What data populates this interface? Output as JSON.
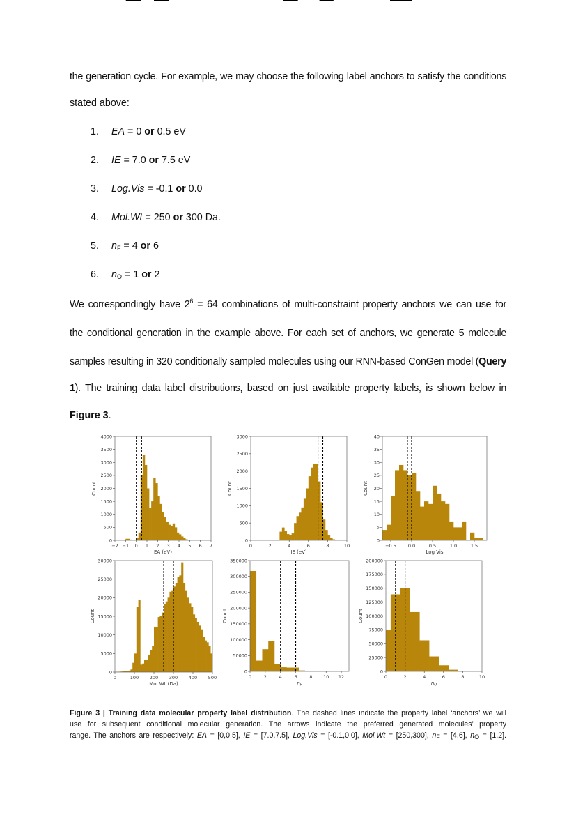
{
  "body": {
    "p1_line1": "the generation cycle. For example, we may choose the following label anchors to satisfy the conditions",
    "p1_line2": "stated above:",
    "list": [
      {
        "num": "1.",
        "var": "EA",
        "eq": " = 0 ",
        "or": "or",
        "rest": " 0.5 eV"
      },
      {
        "num": "2.",
        "var": "IE",
        "eq": " = 7.0 ",
        "or": "or",
        "rest": " 7.5 eV"
      },
      {
        "num": "3.",
        "var": "Log.Vis",
        "eq": " = -0.1 ",
        "or": "or",
        "rest": " 0.0"
      },
      {
        "num": "4.",
        "var": "Mol.Wt",
        "eq": " = 250 ",
        "or": "or",
        "rest": " 300 Da."
      },
      {
        "num": "5.",
        "var": "n",
        "sub": "F",
        "eq": " = 4 ",
        "or": "or",
        "rest": " 6"
      },
      {
        "num": "6.",
        "var": "n",
        "sub": "O",
        "eq": " = 1 ",
        "or": "or",
        "rest": " 2"
      }
    ],
    "p2_line1_a": "We correspondingly have 2",
    "p2_line1_sup": "6",
    "p2_line1_b": " = 64 combinations of multi-constraint property anchors we can use for",
    "p2_line2": "the conditional generation in the example above. For each set of anchors, we generate 5 molecule",
    "p2_line3_a": "samples resulting in 320 conditionally sampled molecules using our RNN-based ConGen model (",
    "p2_line3_bold": "Query",
    "p2_line4_bold": "1",
    "p2_line4_b": "). The training data label distributions, based on just available property labels, is shown below in",
    "p2_line5_bold": "Figure 3",
    "p2_line5_b": "."
  },
  "caption": {
    "label": "Figure 3 | Training data molecular property label distribution",
    "line1_rest": ". The dashed lines indicate the property label ‘anchors’ we will",
    "line2": "use for subsequent conditional molecular generation. The arrows indicate the preferred generated molecules’ property",
    "line3_a": "range. The anchors are respectively: ",
    "ea": "EA",
    "ea_v": " = [0,0.5], ",
    "ie": "IE",
    "ie_v": " = [7.0,7.5], ",
    "lv": "Log.Vis",
    "lv_v": " = [-0.1,0.0], ",
    "mw": "Mol.Wt",
    "mw_v": " = [250,300], ",
    "nf": "n",
    "nf_sub": "F",
    "nf_v": " = [4,6], ",
    "no": "n",
    "no_sub": "O",
    "no_v": " = [1,2]."
  },
  "colors": {
    "bar": "#B8860B",
    "anchor": "#000000",
    "arrow": "#000000"
  },
  "chart_data": [
    {
      "type": "bar",
      "subtype": "histogram",
      "xlabel": "EA (eV)",
      "ylabel": "Count",
      "xlim": [
        -2,
        7
      ],
      "ylim": [
        0,
        4000
      ],
      "xticks": [
        "−2",
        "−1",
        "0",
        "1",
        "2",
        "3",
        "4",
        "5",
        "6",
        "7"
      ],
      "xtick_values": [
        -2,
        -1,
        0,
        1,
        2,
        3,
        4,
        5,
        6,
        7
      ],
      "yticks": [
        "0",
        "500",
        "1000",
        "1500",
        "2000",
        "2500",
        "3000",
        "3500",
        "4000"
      ],
      "ytick_values": [
        0,
        500,
        1000,
        1500,
        2000,
        2500,
        3000,
        3500,
        4000
      ],
      "bin_start": -1.0,
      "bin_width": 0.2,
      "counts": [
        60,
        60,
        30,
        10,
        10,
        100,
        300,
        2500,
        3300,
        2900,
        2000,
        1250,
        1500,
        2400,
        2200,
        1700,
        1400,
        1100,
        900,
        700,
        600,
        550,
        650,
        500,
        300,
        230,
        150,
        80,
        40,
        20,
        10,
        5
      ],
      "anchors": [
        0,
        0.5
      ],
      "arrow_direction": "left"
    },
    {
      "type": "bar",
      "subtype": "histogram",
      "xlabel": "IE (eV)",
      "ylabel": "Count",
      "xlim": [
        0,
        10
      ],
      "ylim": [
        0,
        3000
      ],
      "xticks": [
        "0",
        "2",
        "4",
        "6",
        "8",
        "10"
      ],
      "xtick_values": [
        0,
        2,
        4,
        6,
        8,
        10
      ],
      "yticks": [
        "0",
        "500",
        "1000",
        "1500",
        "2000",
        "2500",
        "3000"
      ],
      "ytick_values": [
        0,
        500,
        1000,
        1500,
        2000,
        2500,
        3000
      ],
      "bin_start": 0,
      "bin_width": 0.25,
      "counts": [
        0,
        2,
        3,
        5,
        5,
        8,
        10,
        12,
        15,
        20,
        20,
        10,
        250,
        370,
        280,
        180,
        150,
        200,
        500,
        700,
        800,
        950,
        1200,
        1500,
        1850,
        2100,
        2200,
        2200,
        1700,
        1100,
        600,
        300,
        150,
        70,
        30,
        10
      ],
      "anchors": [
        7.0,
        7.5
      ],
      "arrow_direction": "right"
    },
    {
      "type": "bar",
      "subtype": "histogram",
      "xlabel": "Log Vis",
      "ylabel": "Count",
      "xlim": [
        -0.7,
        1.8
      ],
      "ylim": [
        0,
        40
      ],
      "xticks": [
        "−0.5",
        "0.0",
        "0.5",
        "1.0",
        "1.5"
      ],
      "xtick_values": [
        -0.5,
        0,
        0.5,
        1.0,
        1.5
      ],
      "yticks": [
        "0",
        "5",
        "10",
        "15",
        "20",
        "25",
        "30",
        "35",
        "40"
      ],
      "ytick_values": [
        0,
        5,
        10,
        15,
        20,
        25,
        30,
        35,
        40
      ],
      "bin_start": -0.7,
      "bin_width": 0.1,
      "counts": [
        4,
        6,
        17,
        27,
        29,
        27,
        25,
        26,
        19,
        13,
        15,
        14,
        21,
        18,
        15,
        14,
        7,
        5,
        5,
        7,
        0,
        3,
        1,
        1
      ],
      "anchors": [
        -0.1,
        0.0
      ],
      "arrow_direction": "left"
    },
    {
      "type": "bar",
      "subtype": "histogram",
      "xlabel": "Mol.Wt (Da)",
      "ylabel": "Count",
      "xlim": [
        0,
        500
      ],
      "ylim": [
        0,
        30000
      ],
      "xticks": [
        "0",
        "100",
        "200",
        "300",
        "400",
        "500"
      ],
      "xtick_values": [
        0,
        100,
        200,
        300,
        400,
        500
      ],
      "yticks": [
        "0",
        "5000",
        "10000",
        "15000",
        "20000",
        "25000",
        "30000"
      ],
      "ytick_values": [
        0,
        5000,
        10000,
        15000,
        20000,
        25000,
        30000
      ],
      "bin_start": 0,
      "bin_width": 10,
      "counts": [
        50,
        80,
        100,
        150,
        200,
        250,
        300,
        400,
        700,
        2500,
        5000,
        17500,
        19500,
        2000,
        2300,
        3200,
        3300,
        4700,
        6000,
        7000,
        12200,
        12100,
        14800,
        15000,
        16000,
        18300,
        19000,
        20000,
        21600,
        22000,
        23000,
        24000,
        25500,
        26000,
        29500,
        24000,
        22000,
        20000,
        18500,
        17500,
        15500,
        14500,
        13500,
        12500,
        11500,
        9500,
        8500,
        8000,
        7000,
        5000
      ],
      "anchors": [
        250,
        300
      ],
      "arrow_direction": "left"
    },
    {
      "type": "bar",
      "subtype": "histogram",
      "xlabel": "n",
      "xlabel_sub": "F",
      "ylabel": "Count",
      "xlim": [
        0,
        13
      ],
      "ylim": [
        0,
        350000
      ],
      "xticks": [
        "0",
        "2",
        "4",
        "6",
        "8",
        "10",
        "12"
      ],
      "xtick_values": [
        0,
        2,
        4,
        6,
        8,
        10,
        12
      ],
      "yticks": [
        "0",
        "50000",
        "100000",
        "150000",
        "200000",
        "250000",
        "300000",
        "350000"
      ],
      "ytick_values": [
        0,
        50000,
        100000,
        150000,
        200000,
        250000,
        300000,
        350000
      ],
      "bin_start": 0,
      "bin_width": 0.8,
      "counts": [
        317000,
        34000,
        70000,
        95000,
        22000,
        13000,
        12000,
        12000,
        3000,
        2000,
        1500,
        1500,
        500,
        500,
        300
      ],
      "anchors": [
        4,
        6
      ],
      "arrow_direction": "right"
    },
    {
      "type": "bar",
      "subtype": "histogram",
      "xlabel": "n",
      "xlabel_sub": "O",
      "ylabel": "Count",
      "xlim": [
        0,
        10
      ],
      "ylim": [
        0,
        200000
      ],
      "xticks": [
        "0",
        "2",
        "4",
        "6",
        "8",
        "10"
      ],
      "xtick_values": [
        0,
        2,
        4,
        6,
        8,
        10
      ],
      "yticks": [
        "0",
        "25000",
        "50000",
        "75000",
        "100000",
        "125000",
        "150000",
        "175000",
        "200000"
      ],
      "ytick_values": [
        0,
        25000,
        50000,
        75000,
        100000,
        125000,
        150000,
        175000,
        200000
      ],
      "bin_start": -0.5,
      "bin_width": 1,
      "counts": [
        75000,
        139000,
        150000,
        107000,
        56000,
        27000,
        11000,
        3000,
        1000,
        300
      ],
      "anchors": [
        1,
        2
      ],
      "arrow_direction": "left"
    }
  ]
}
